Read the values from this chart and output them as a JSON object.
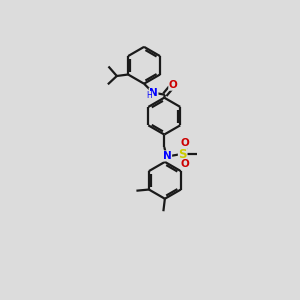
{
  "background_color": "#e8e8e8",
  "bond_color": "#1a1a1a",
  "atom_colors": {
    "N": "#0000ff",
    "O": "#cc0000",
    "S": "#cccc00",
    "H": "#0000ff",
    "C": "#1a1a1a"
  },
  "bg": "#e2e2e2"
}
